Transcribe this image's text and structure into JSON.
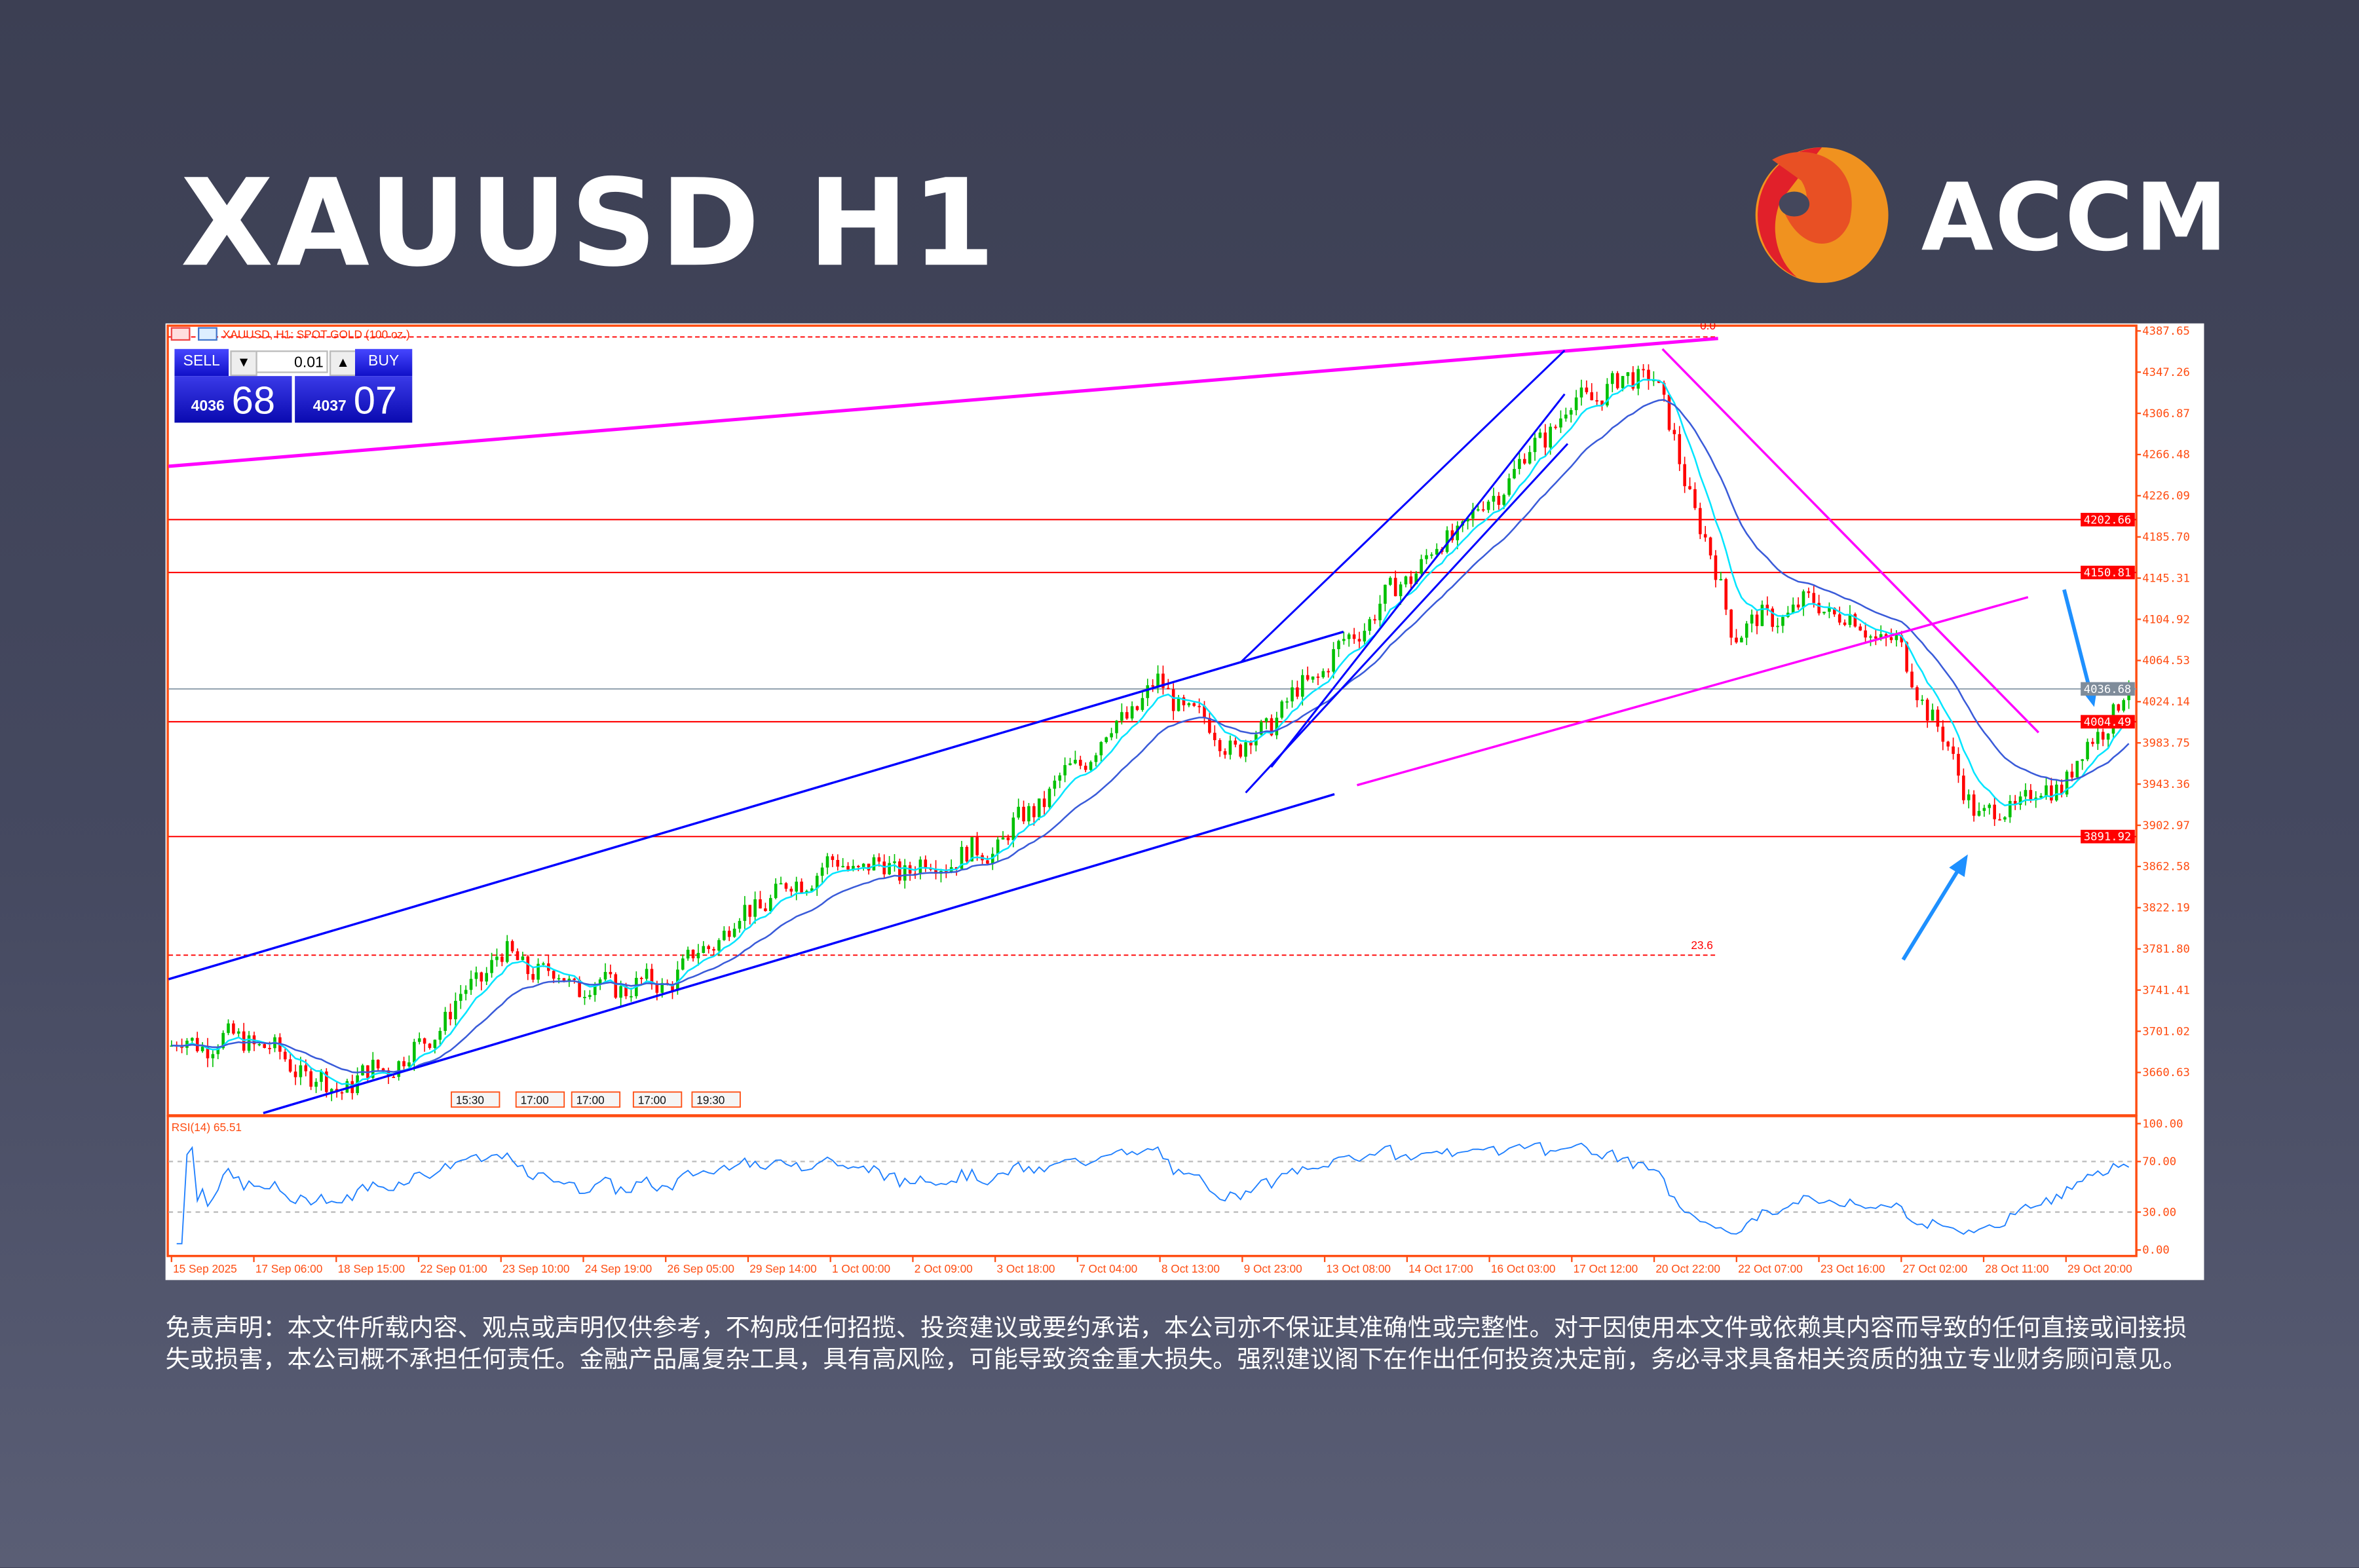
{
  "header": {
    "title": "XAUUSD H1",
    "brand": "ACCM"
  },
  "terminal": {
    "chart_caption": "XAUUSD, H1: SPOT GOLD (100 oz.)",
    "sell_label": "SELL",
    "buy_label": "BUY",
    "lot": "0.01",
    "sell_price_small": "4036",
    "sell_price_big": "68",
    "buy_price_small": "4037",
    "buy_price_big": "07",
    "session_markers": [
      "15:30",
      "17:00",
      "17:00",
      "17:00",
      "19:30"
    ],
    "fib_labels": [
      "0.0",
      "23.6"
    ],
    "rsi_label": "RSI(14) 65.51"
  },
  "colors": {
    "bull": "#00c000",
    "bear": "#ff0000",
    "ma_fast": "#00e5ff",
    "ma_slow": "#3a5bd9",
    "trend_magenta": "#ff00ff",
    "trend_blue": "#0000ff",
    "level_red": "#ff0000",
    "axis": "#ff4d12",
    "arrow": "#1e90ff",
    "rsi": "#1e7fff"
  },
  "chart_data": {
    "type": "candlestick",
    "title": "XAUUSD, H1: SPOT GOLD (100 oz.)",
    "x_ticks": [
      "15 Sep 2025",
      "17 Sep 06:00",
      "18 Sep 15:00",
      "22 Sep 01:00",
      "23 Sep 10:00",
      "24 Sep 19:00",
      "26 Sep 05:00",
      "29 Sep 14:00",
      "1 Oct 00:00",
      "2 Oct 09:00",
      "3 Oct 18:00",
      "7 Oct 04:00",
      "8 Oct 13:00",
      "9 Oct 23:00",
      "13 Oct 08:00",
      "14 Oct 17:00",
      "16 Oct 03:00",
      "17 Oct 12:00",
      "20 Oct 22:00",
      "22 Oct 07:00",
      "23 Oct 16:00",
      "27 Oct 02:00",
      "28 Oct 11:00",
      "29 Oct 20:00"
    ],
    "close_at_ticks": [
      3687,
      3694,
      3643,
      3680,
      3776,
      3746,
      3746,
      3817,
      3864,
      3860,
      3879,
      3960,
      4041,
      3975,
      4056,
      4144,
      4218,
      4314,
      4350,
      4093,
      4122,
      4078,
      3908,
      3945
    ],
    "last_price": 4036.68,
    "y_ticks": [
      "4387.65",
      "4347.26",
      "4306.87",
      "4266.48",
      "4226.09",
      "4185.70",
      "4145.31",
      "4104.92",
      "4064.53",
      "4024.14",
      "3983.75",
      "3943.36",
      "3902.97",
      "3862.58",
      "3822.19",
      "3781.80",
      "3741.41",
      "3701.02",
      "3660.63"
    ],
    "ylim": [
      3645,
      4395
    ],
    "horizontal_levels": [
      "4202.66",
      "4150.81",
      "4004.49",
      "3891.92"
    ],
    "current_price_label": "4036.68",
    "rsi": {
      "period": 14,
      "value": 65.51,
      "levels": [
        70,
        30
      ],
      "y_ticks": [
        "100.00",
        "70.00",
        "30.00",
        "0.00"
      ]
    }
  },
  "disclaimer": "免责声明：本文件所载内容、观点或声明仅供参考，不构成任何招揽、投资建议或要约承诺，本公司亦不保证其准确性或完整性。对于因使用本文件或依赖其内容而导致的任何直接或间接损失或损害，本公司概不承担任何责任。金融产品属复杂工具，具有高风险，可能导致资金重大损失。强烈建议阁下在作出任何投资决定前，务必寻求具备相关资质的独立专业财务顾问意见。"
}
